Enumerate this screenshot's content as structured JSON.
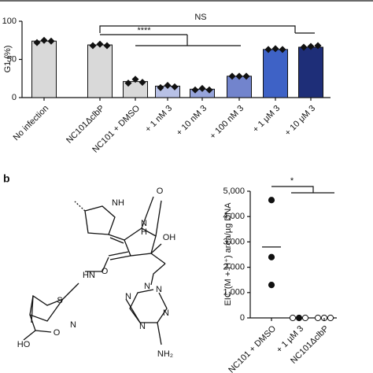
{
  "panel_label": "b",
  "chart_data": [
    {
      "type": "bar",
      "ylabel": "G1 (%)",
      "categories": [
        "No infection",
        "NC101ΔclbP",
        "NC101 + DMSO",
        "+ 1 nM 3",
        "+ 10 nM 3",
        "+ 100 nM 3",
        "+ 1 μM 3",
        "+ 10 μM 3"
      ],
      "values": [
        74,
        69,
        21,
        15,
        11,
        28,
        63,
        66
      ],
      "points": [
        [
          72,
          75,
          74
        ],
        [
          68,
          70,
          68
        ],
        [
          19,
          24,
          20
        ],
        [
          13,
          16,
          14
        ],
        [
          10,
          12,
          10
        ],
        [
          28,
          28,
          28
        ],
        [
          63,
          64,
          63
        ],
        [
          66,
          67,
          68
        ]
      ],
      "colors": [
        "#d9d9d9",
        "#d9d9d9",
        "#d9d9d9",
        "#b8c1e6",
        "#97a5dc",
        "#7284cd",
        "#3e62c6",
        "#1e2e78"
      ],
      "ylim": [
        0,
        100
      ],
      "yticks": [
        0,
        50,
        100
      ],
      "annotations": [
        "NS",
        "****"
      ]
    },
    {
      "type": "strip",
      "ylabel": "EIC (M + H⁺) area/µg DNA",
      "categories": [
        "NC101 + DMSO",
        "+ 1 µM 3",
        "NC101ΔclbP"
      ],
      "points": [
        [
          4650,
          2400,
          1300
        ],
        [
          0,
          0,
          0
        ],
        [
          0,
          0,
          0
        ]
      ],
      "markers": [
        [
          "filled",
          "filled",
          "filled"
        ],
        [
          "hollow",
          "filled",
          "hollow"
        ],
        [
          "hollow",
          "hollow",
          "hollow"
        ]
      ],
      "means": [
        2800,
        0,
        0
      ],
      "ylim": [
        0,
        5000
      ],
      "yticks": [
        0,
        {
          "value": 1000,
          "label": "1,000"
        },
        {
          "value": 2000,
          "label": "2,000"
        },
        {
          "value": 3000,
          "label": "3,000"
        },
        {
          "value": 4000,
          "label": "4,000"
        },
        {
          "value": 5000,
          "label": "5,000"
        }
      ],
      "annotations": [
        "*"
      ]
    }
  ],
  "structure": {
    "labels": [
      "NH",
      "O",
      "N",
      "H",
      "OH",
      "N",
      "HN",
      "O",
      "N",
      "N",
      "N",
      "N",
      "NH₂",
      "S",
      "N",
      "HO",
      "O"
    ]
  }
}
